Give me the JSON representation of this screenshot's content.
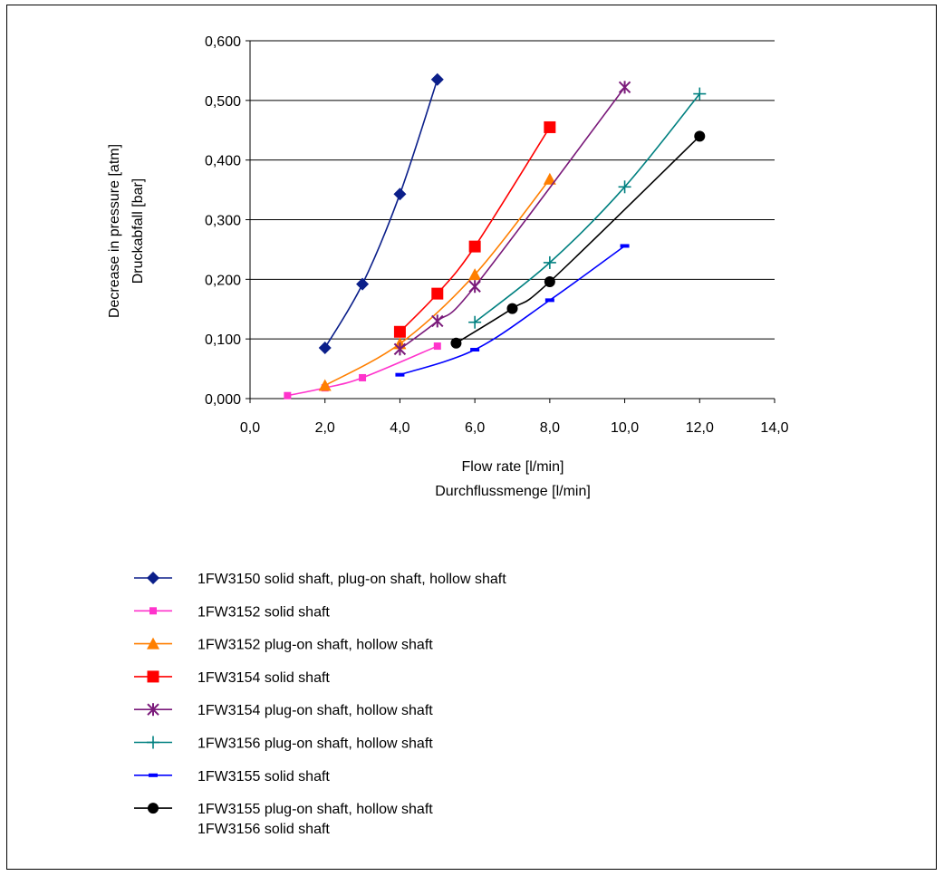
{
  "chart_data": {
    "type": "line",
    "xlabel": [
      "Flow rate [l/min]",
      "Durchflussmenge [l/min]"
    ],
    "ylabel": [
      "Decrease in pressure [atm]",
      "Druckabfall [bar]"
    ],
    "xlim": [
      0,
      14
    ],
    "ylim": [
      0,
      0.6
    ],
    "x_ticks": [
      "0,0",
      "2,0",
      "4,0",
      "6,0",
      "8,0",
      "10,0",
      "12,0",
      "14,0"
    ],
    "y_ticks": [
      "0,000",
      "0,100",
      "0,200",
      "0,300",
      "0,400",
      "0,500",
      "0,600"
    ],
    "grid": "horizontal",
    "legend_position": "bottom",
    "series": [
      {
        "name": "1FW3150 solid shaft, plug-on shaft, hollow shaft",
        "color": "#0b1f8a",
        "marker": "diamond",
        "points": [
          [
            2,
            0.085
          ],
          [
            3,
            0.192
          ],
          [
            4,
            0.343
          ],
          [
            5,
            0.535
          ]
        ]
      },
      {
        "name": "1FW3152 solid shaft",
        "color": "#ff33cc",
        "marker": "small-square",
        "points": [
          [
            1,
            0.005
          ],
          [
            2,
            0.018
          ],
          [
            3,
            0.035
          ],
          [
            5,
            0.088
          ]
        ]
      },
      {
        "name": "1FW3152 plug-on shaft, hollow shaft",
        "color": "#ff7f00",
        "marker": "triangle",
        "points": [
          [
            2,
            0.022
          ],
          [
            4,
            0.092
          ],
          [
            6,
            0.208
          ],
          [
            8,
            0.368
          ]
        ]
      },
      {
        "name": "1FW3154 solid shaft",
        "color": "#ff0000",
        "marker": "square",
        "points": [
          [
            4,
            0.112
          ],
          [
            5,
            0.176
          ],
          [
            6,
            0.255
          ],
          [
            8,
            0.455
          ]
        ]
      },
      {
        "name": "1FW3154 plug-on shaft, hollow shaft",
        "color": "#7a1a7a",
        "marker": "asterisk",
        "points": [
          [
            4,
            0.083
          ],
          [
            5,
            0.13
          ],
          [
            6,
            0.188
          ],
          [
            10,
            0.522
          ]
        ]
      },
      {
        "name": "1FW3156 plug-on shaft, hollow shaft",
        "color": "#008080",
        "marker": "plus",
        "points": [
          [
            6,
            0.128
          ],
          [
            8,
            0.228
          ],
          [
            10,
            0.355
          ],
          [
            12,
            0.511
          ]
        ]
      },
      {
        "name": "1FW3155 solid shaft",
        "color": "#0000ff",
        "marker": "dash",
        "points": [
          [
            4,
            0.04
          ],
          [
            6,
            0.082
          ],
          [
            8,
            0.165
          ],
          [
            10,
            0.256
          ]
        ]
      },
      {
        "name": "1FW3155 plug-on shaft, hollow shaft",
        "name2": "1FW3156 solid shaft",
        "color": "#000000",
        "marker": "circle",
        "points": [
          [
            5.5,
            0.093
          ],
          [
            7,
            0.151
          ],
          [
            8,
            0.196
          ],
          [
            12,
            0.44
          ]
        ]
      }
    ]
  }
}
